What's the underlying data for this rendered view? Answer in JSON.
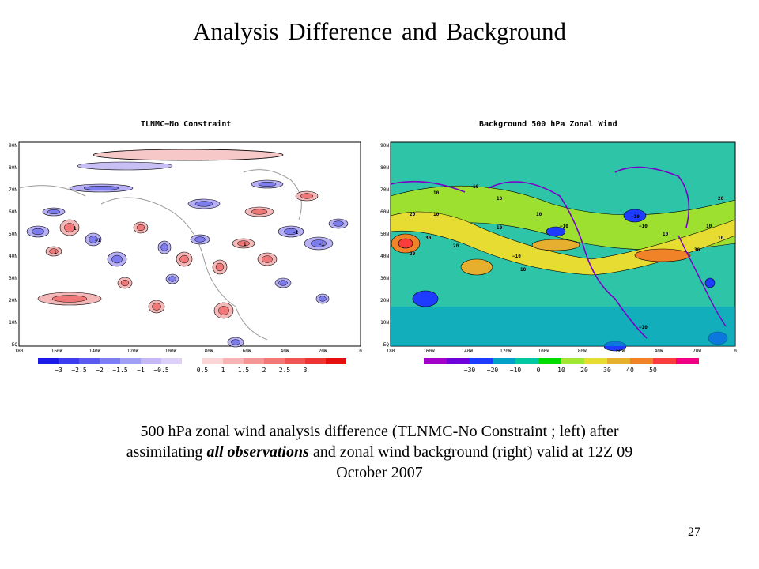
{
  "title": "Analysis Difference and Background",
  "panels": {
    "left": {
      "title": "TLNMC−No Constraint",
      "lat_labels": [
        "90N",
        "80N",
        "70N",
        "60N",
        "50N",
        "40N",
        "30N",
        "20N",
        "10N",
        "EQ"
      ],
      "lon_labels": [
        "180",
        "160W",
        "140W",
        "120W",
        "100W",
        "80W",
        "60W",
        "40W",
        "20W",
        "0"
      ],
      "contour_labels": [
        "1",
        "−1",
        "1",
        "−1",
        "1",
        "−1"
      ],
      "colorbar": {
        "colors": [
          "#1a1ae6",
          "#3c3cf0",
          "#5a5af0",
          "#7d7df5",
          "#9f9ff5",
          "#c4b8f5",
          "#dcd0f8",
          "#ffffff",
          "#fbd6d6",
          "#f7b4b4",
          "#f59595",
          "#f27777",
          "#f05555",
          "#ee3333",
          "#e60f0f"
        ],
        "labels": [
          "−3",
          "−2.5",
          "−2",
          "−1.5",
          "−1",
          "−0.5",
          "0.5",
          "1",
          "1.5",
          "2",
          "2.5",
          "3"
        ]
      }
    },
    "right": {
      "title": "Background 500 hPa Zonal Wind",
      "lat_labels": [
        "90N",
        "80N",
        "70N",
        "60N",
        "50N",
        "40N",
        "30N",
        "20N",
        "10N",
        "EQ"
      ],
      "lon_labels": [
        "180",
        "160W",
        "140W",
        "120W",
        "100W",
        "80W",
        "60W",
        "40W",
        "20W",
        "0"
      ],
      "contour_labels": [
        "10",
        "10",
        "20",
        "10",
        "−10",
        "30",
        "20",
        "10",
        "10",
        "−10",
        "20",
        "10",
        "−10",
        "30",
        "10",
        "20",
        "−10",
        "10",
        "10",
        "−10",
        "10"
      ],
      "colorbar": {
        "colors": [
          "#a000c8",
          "#6e00dc",
          "#1e3cff",
          "#00a0c8",
          "#00c8a0",
          "#00dc00",
          "#a0e632",
          "#e6dc32",
          "#e6af2d",
          "#f08228",
          "#fa3c3c",
          "#f00082"
        ],
        "labels": [
          "−30",
          "−20",
          "−10",
          "0",
          "10",
          "20",
          "30",
          "40",
          "50"
        ]
      }
    }
  },
  "caption": {
    "line1": "500 hPa zonal wind analysis difference (TLNMC-No Constraint ; left) after",
    "line2_pre": "assimilating ",
    "line2_em": "all observations",
    "line2_post": " and zonal wind background (right) valid at 12Z 09",
    "line3": "October 2007"
  },
  "page_number": "27"
}
